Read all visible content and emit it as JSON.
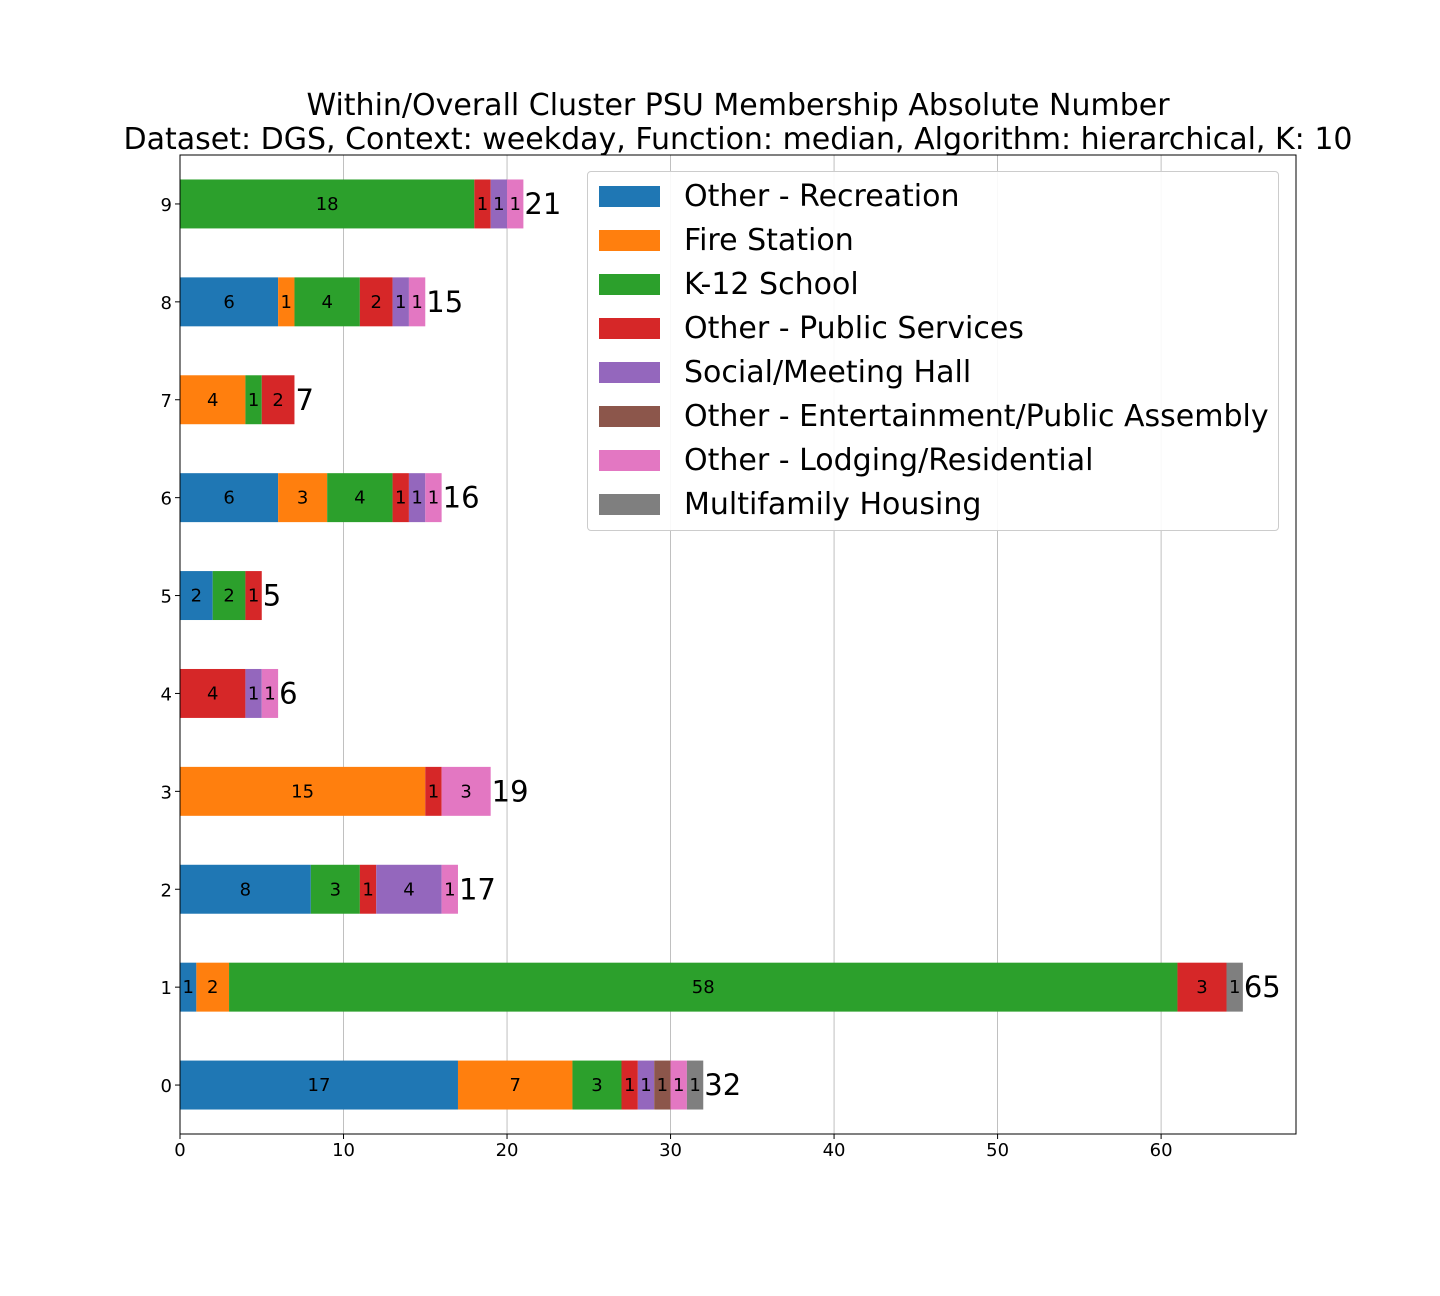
{
  "chart_data": {
    "type": "bar",
    "orientation": "horizontal",
    "stacked": true,
    "title": "Within/Overall Cluster PSU Membership Absolute Number",
    "subtitle": "Dataset: DGS, Context: weekday, Function: median, Algorithm: hierarchical, K: 10",
    "xlabel": "",
    "ylabel": "",
    "xlim": [
      0,
      68.25
    ],
    "xticks": [
      0,
      10,
      20,
      30,
      40,
      50,
      60
    ],
    "grid": "vertical",
    "legend_position": "top-right",
    "categories": [
      "0",
      "1",
      "2",
      "3",
      "4",
      "5",
      "6",
      "7",
      "8",
      "9"
    ],
    "series": [
      {
        "name": "Other - Recreation",
        "color": "#1f77b4",
        "values": [
          17,
          1,
          8,
          0,
          0,
          2,
          6,
          0,
          6,
          0
        ]
      },
      {
        "name": "Fire Station",
        "color": "#ff7f0e",
        "values": [
          7,
          2,
          0,
          15,
          0,
          0,
          3,
          4,
          1,
          0
        ]
      },
      {
        "name": "K-12 School",
        "color": "#2ca02c",
        "values": [
          3,
          58,
          3,
          0,
          0,
          2,
          4,
          1,
          4,
          18
        ]
      },
      {
        "name": "Other - Public Services",
        "color": "#d62728",
        "values": [
          1,
          3,
          1,
          1,
          4,
          1,
          1,
          2,
          2,
          1
        ]
      },
      {
        "name": "Social/Meeting Hall",
        "color": "#9467bd",
        "values": [
          1,
          0,
          4,
          0,
          1,
          0,
          1,
          0,
          1,
          1
        ]
      },
      {
        "name": "Other - Entertainment/Public Assembly",
        "color": "#8c564b",
        "values": [
          1,
          0,
          0,
          0,
          0,
          0,
          0,
          0,
          0,
          0
        ]
      },
      {
        "name": "Other - Lodging/Residential",
        "color": "#e377c2",
        "values": [
          1,
          0,
          1,
          3,
          1,
          0,
          1,
          0,
          1,
          1
        ]
      },
      {
        "name": "Multifamily Housing",
        "color": "#7f7f7f",
        "values": [
          1,
          1,
          0,
          0,
          0,
          0,
          0,
          0,
          0,
          0
        ]
      }
    ],
    "totals": [
      32,
      65,
      17,
      19,
      6,
      5,
      16,
      7,
      15,
      21
    ]
  }
}
